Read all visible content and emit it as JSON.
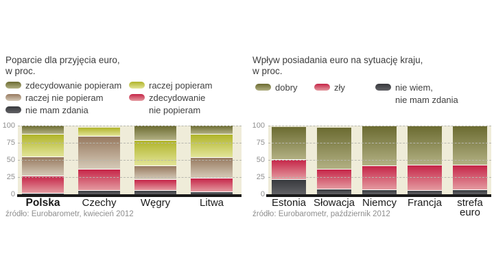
{
  "colors": {
    "background": "#ffffff",
    "plot_background": "#efecd9",
    "baseline": "#1a1a1a",
    "gridline": "#b7b7ae",
    "axis_label_text": "#8e8e8e",
    "title_text": "#3c3c3c",
    "legend_text": "#3f3f3f",
    "category_label_text": "#1a1a1a",
    "source_text": "#8e8e8e",
    "series": {
      "strongly_for": {
        "swatch": "olive",
        "top": "#6b6b31",
        "bottom": "#b2b083"
      },
      "rather_for": {
        "swatch": "yellow-green",
        "top": "#b0b42a",
        "bottom": "#e2e498"
      },
      "rather_against": {
        "swatch": "tan-brown",
        "top": "#97795f",
        "bottom": "#d5cab8"
      },
      "strongly_against": {
        "swatch": "crimson",
        "top": "#c52548",
        "bottom": "#e49aa0"
      },
      "no_opinion": {
        "swatch": "dark-gray",
        "top": "#38393d",
        "bottom": "#626266"
      },
      "good": {
        "swatch": "olive",
        "top": "#6b6b31",
        "bottom": "#b2b083"
      },
      "bad": {
        "swatch": "crimson",
        "top": "#c52548",
        "bottom": "#e49aa0"
      },
      "dont_know": {
        "swatch": "dark-gray",
        "top": "#38393d",
        "bottom": "#626266"
      }
    }
  },
  "left_chart": {
    "title": [
      "Poparcie dla przyjęcia euro,",
      "w proc."
    ],
    "legend": {
      "col1": [
        {
          "label": "zdecydowanie popieram",
          "key": "strongly_for"
        },
        {
          "label": "raczej nie popieram",
          "key": "rather_against"
        },
        {
          "label": "nie mam zdania",
          "key": "no_opinion"
        }
      ],
      "col2": [
        {
          "label": "raczej popieram",
          "key": "rather_for"
        },
        {
          "label": "zdecydowanie",
          "label2": "nie popieram",
          "key": "strongly_against"
        }
      ]
    },
    "source": "źródło: Eurobarometr, kwiecień 2012"
  },
  "right_chart": {
    "title": [
      "Wpływ posiadania euro na sytuację kraju,",
      "w proc."
    ],
    "legend": [
      {
        "label": "dobry",
        "key": "good"
      },
      {
        "label": "zły",
        "key": "bad"
      },
      {
        "label": "nie wiem,",
        "label2": "nie mam zdania",
        "key": "dont_know"
      }
    ],
    "source": "źródło: Eurobarometr, październik 2012"
  },
  "chart_data": [
    {
      "type": "bar",
      "stacked": true,
      "title": "Poparcie dla przyjęcia euro, w proc.",
      "categories": [
        "Polska",
        "Czechy",
        "Węgry",
        "Litwa"
      ],
      "highlight_category": "Polska",
      "ylim": [
        0,
        100
      ],
      "yticks": [
        0,
        25,
        50,
        75,
        100
      ],
      "grid": "horizontal-dashed",
      "legend_position": "top",
      "series": [
        {
          "name": "zdecydowanie popieram",
          "key": "strongly_for",
          "values": [
            12,
            0,
            21,
            12
          ]
        },
        {
          "name": "raczej popieram",
          "key": "rather_for",
          "values": [
            33,
            12,
            37,
            34
          ]
        },
        {
          "name": "raczej nie popieram",
          "key": "rather_against",
          "values": [
            28,
            48,
            20,
            30
          ]
        },
        {
          "name": "zdecydowanie nie popieram",
          "key": "strongly_against",
          "values": [
            25,
            31,
            16,
            20
          ]
        },
        {
          "name": "nie mam zdania",
          "key": "no_opinion",
          "values": [
            2,
            6,
            6,
            4
          ]
        }
      ],
      "stack_order_bottom_to_top": [
        "no_opinion",
        "strongly_against",
        "rather_against",
        "rather_for",
        "strongly_for"
      ],
      "source": "źródło: Eurobarometr, kwiecień 2012"
    },
    {
      "type": "bar",
      "stacked": true,
      "title": "Wpływ posiadania euro na sytuację kraju, w proc.",
      "categories": [
        "Estonia",
        "Słowacja",
        "Niemcy",
        "Francja",
        "strefa\neuro"
      ],
      "ylim": [
        0,
        100
      ],
      "yticks": [
        0,
        25,
        50,
        75,
        100
      ],
      "grid": "horizontal-dashed",
      "legend_position": "top",
      "series": [
        {
          "name": "dobry",
          "key": "good",
          "values": [
            47,
            60,
            57,
            56,
            56
          ]
        },
        {
          "name": "zły",
          "key": "bad",
          "values": [
            29,
            29,
            35,
            37,
            36
          ]
        },
        {
          "name": "nie wiem, nie mam zdania",
          "key": "dont_know",
          "values": [
            22,
            8,
            7,
            6,
            7
          ]
        }
      ],
      "stack_order_bottom_to_top": [
        "dont_know",
        "bad",
        "good"
      ],
      "source": "źródło: Eurobarometr, październik 2012"
    }
  ]
}
